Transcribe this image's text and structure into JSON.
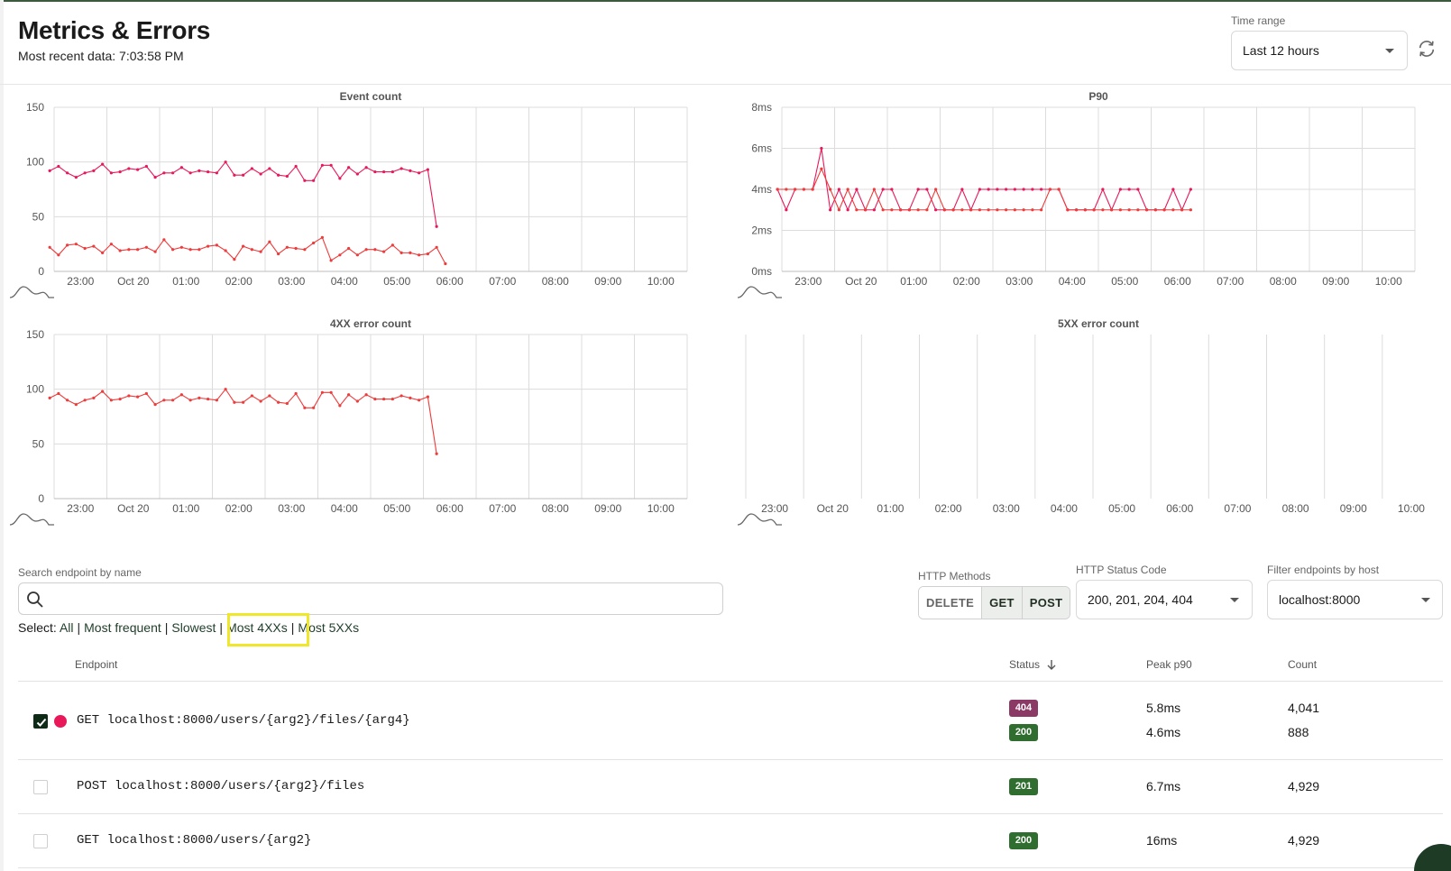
{
  "header": {
    "title": "Metrics & Errors",
    "subtitle": "Most recent data: 7:03:58 PM",
    "time_range_label": "Time range",
    "time_range_value": "Last 12 hours"
  },
  "icons": {
    "refresh": "refresh-icon",
    "search": "search-icon",
    "dropdown": "chevron-down-icon",
    "chart_toggle": "wave-icon",
    "check": "check-icon"
  },
  "colors": {
    "series_primary": "#e8185a",
    "series_error": "#ee3b3b",
    "grid": "#d9d9d9",
    "accent": "#1f3d2a",
    "badge_404": "#8b3a66",
    "badge_2xx": "#2f6e2f",
    "highlight": "#f0e62a"
  },
  "time_ticks": [
    "23:00",
    "Oct 20",
    "01:00",
    "02:00",
    "03:00",
    "04:00",
    "05:00",
    "06:00",
    "07:00",
    "08:00",
    "09:00",
    "10:00"
  ],
  "chart_data": [
    {
      "type": "line",
      "title": "Event count",
      "y_ticks": [
        "150",
        "100",
        "50",
        "0"
      ],
      "ylim": [
        0,
        150
      ],
      "x_start": "22:25",
      "x_step_minutes": 10,
      "series": [
        {
          "values": [
            92,
            96,
            90,
            86,
            90,
            92,
            98,
            90,
            91,
            94,
            93,
            96,
            86,
            90,
            90,
            95,
            90,
            92,
            91,
            90,
            100,
            88,
            88,
            94,
            89,
            94,
            88,
            87,
            96,
            83,
            83,
            97,
            97,
            85,
            95,
            89,
            95,
            91,
            91,
            91,
            94,
            92,
            90,
            93,
            41
          ]
        },
        {
          "values": [
            22,
            15,
            24,
            25,
            21,
            23,
            17,
            25,
            19,
            20,
            20,
            22,
            18,
            29,
            20,
            22,
            20,
            20,
            23,
            24,
            19,
            11,
            23,
            20,
            18,
            27,
            16,
            22,
            21,
            20,
            26,
            31,
            10,
            15,
            21,
            15,
            20,
            20,
            18,
            24,
            17,
            17,
            15,
            16,
            22,
            7
          ]
        }
      ]
    },
    {
      "type": "line",
      "title": "P90",
      "y_ticks": [
        "8ms",
        "6ms",
        "4ms",
        "2ms",
        "0ms"
      ],
      "ylim": [
        0,
        8
      ],
      "x_start": "22:25",
      "x_step_minutes": 10,
      "series": [
        {
          "values": [
            4,
            3,
            4,
            4,
            4,
            6,
            3,
            4,
            3,
            4,
            3,
            3,
            4,
            4,
            3,
            3,
            4,
            4,
            3,
            3,
            3,
            4,
            3,
            4,
            4,
            4,
            4,
            4,
            4,
            4,
            4,
            4,
            4,
            3,
            3,
            3,
            3,
            4,
            3,
            4,
            4,
            4,
            3,
            3,
            3,
            4,
            3,
            4
          ]
        },
        {
          "values": [
            4,
            4,
            4,
            4,
            4,
            5,
            4,
            3,
            4,
            3,
            3,
            4,
            3,
            3,
            3,
            3,
            3,
            3,
            4,
            3,
            3,
            3,
            3,
            3,
            3,
            3,
            3,
            3,
            3,
            3,
            3,
            4,
            4,
            3,
            3,
            3,
            3,
            3,
            3,
            3,
            3,
            3,
            3,
            3,
            3,
            3,
            3,
            3
          ]
        }
      ]
    },
    {
      "type": "line",
      "title": "4XX error count",
      "y_ticks": [
        "150",
        "100",
        "50",
        "0"
      ],
      "ylim": [
        0,
        150
      ],
      "x_start": "22:25",
      "x_step_minutes": 10,
      "series": [
        {
          "values": [
            92,
            96,
            90,
            86,
            90,
            92,
            98,
            90,
            91,
            94,
            93,
            96,
            86,
            90,
            90,
            95,
            90,
            92,
            91,
            90,
            100,
            88,
            88,
            94,
            89,
            94,
            88,
            87,
            96,
            83,
            83,
            97,
            97,
            85,
            95,
            89,
            95,
            91,
            91,
            91,
            94,
            92,
            90,
            93,
            41
          ]
        }
      ]
    },
    {
      "type": "line",
      "title": "5XX error count",
      "y_ticks": [],
      "series": []
    }
  ],
  "filters": {
    "search_label": "Search endpoint by name",
    "search_value": "",
    "select_prefix": "Select:",
    "select_links": [
      "All",
      "Most frequent",
      "Slowest",
      "Most 4XXs",
      "Most 5XXs"
    ],
    "methods_label": "HTTP Methods",
    "methods": [
      {
        "label": "DELETE",
        "active": false
      },
      {
        "label": "GET",
        "active": true
      },
      {
        "label": "POST",
        "active": true
      }
    ],
    "status_label": "HTTP Status Code",
    "status_value": "200, 201, 204, 404",
    "host_label": "Filter endpoints by host",
    "host_value": "localhost:8000"
  },
  "table": {
    "headers": {
      "endpoint": "Endpoint",
      "status": "Status",
      "peak": "Peak p90",
      "count": "Count"
    },
    "rows": [
      {
        "checked": true,
        "endpoint": "GET localhost:8000/users/{arg2}/files/{arg4}",
        "statuses": [
          {
            "code": "404",
            "p90": "5.8ms",
            "count": "4,041"
          },
          {
            "code": "200",
            "p90": "4.6ms",
            "count": "888"
          }
        ]
      },
      {
        "checked": false,
        "endpoint": "POST localhost:8000/users/{arg2}/files",
        "statuses": [
          {
            "code": "201",
            "p90": "6.7ms",
            "count": "4,929"
          }
        ]
      },
      {
        "checked": false,
        "endpoint": "GET localhost:8000/users/{arg2}",
        "statuses": [
          {
            "code": "200",
            "p90": "16ms",
            "count": "4,929"
          }
        ]
      }
    ]
  }
}
